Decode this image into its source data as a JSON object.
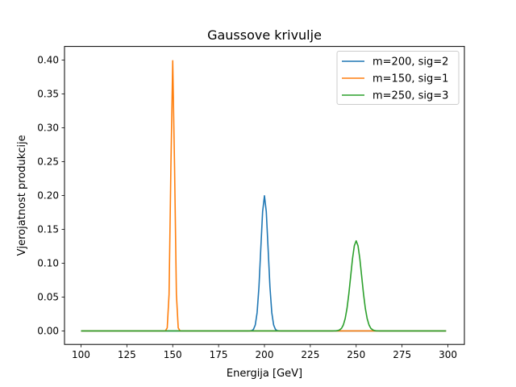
{
  "chart_data": {
    "type": "line",
    "title": "Gaussove krivulje",
    "xlabel": "Energija [GeV]",
    "ylabel": "Vjerojatnost produkcije",
    "xlim": [
      91,
      309
    ],
    "ylim": [
      -0.02,
      0.42
    ],
    "xticks": [
      100,
      125,
      150,
      175,
      200,
      225,
      250,
      275,
      300
    ],
    "yticks": [
      0.0,
      0.05,
      0.1,
      0.15,
      0.2,
      0.25,
      0.3,
      0.35,
      0.4
    ],
    "xtick_labels": [
      "100",
      "125",
      "150",
      "175",
      "200",
      "225",
      "250",
      "275",
      "300"
    ],
    "ytick_labels": [
      "0.00",
      "0.05",
      "0.10",
      "0.15",
      "0.20",
      "0.25",
      "0.30",
      "0.35",
      "0.40"
    ],
    "x_range": [
      100,
      299
    ],
    "x_step": 1,
    "grid": false,
    "legend_position": "upper right",
    "series": [
      {
        "name": "m=200, sig=2",
        "mean": 200,
        "sigma": 2,
        "color": "#1f77b4"
      },
      {
        "name": "m=150, sig=1",
        "mean": 150,
        "sigma": 1,
        "color": "#ff7f0e"
      },
      {
        "name": "m=250, sig=3",
        "mean": 250,
        "sigma": 3,
        "color": "#2ca02c"
      }
    ]
  }
}
